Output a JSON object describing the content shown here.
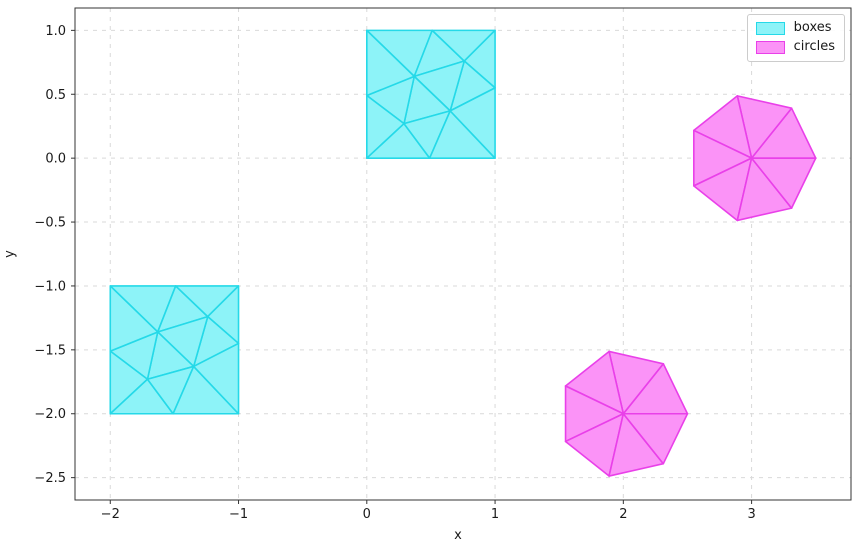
{
  "chart_data": {
    "type": "polygon-mesh",
    "title": "",
    "xlabel": "x",
    "ylabel": "y",
    "xlim": [
      -2.275,
      3.775
    ],
    "ylim": [
      -2.675,
      1.175
    ],
    "x_ticks": [
      -2,
      -1,
      0,
      1,
      2,
      3
    ],
    "x_tick_labels": [
      "−2",
      "−1",
      "0",
      "1",
      "2",
      "3"
    ],
    "y_ticks": [
      1.0,
      0.5,
      0.0,
      -0.5,
      -1.0,
      -1.5,
      -2.0,
      -2.5
    ],
    "y_tick_labels": [
      "1.0",
      "0.5",
      "0.0",
      "−0.5",
      "−1.0",
      "−1.5",
      "−2.0",
      "−2.5"
    ],
    "grid": {
      "visible": true,
      "style": "dashed",
      "color": "#d9d9d9"
    },
    "axes": {
      "spine_color": "#333333",
      "tick_color": "#333333",
      "background": "#ffffff"
    },
    "legend": {
      "position": "upper right",
      "items": [
        {
          "label": "boxes",
          "fill": "#8df3f8",
          "edge": "#25d9e8"
        },
        {
          "label": "circles",
          "fill": "#fb93f7",
          "edge": "#e940e9"
        }
      ]
    },
    "series": [
      {
        "name": "boxes",
        "shape": "triangulated-square",
        "fill": "#8df3f8",
        "edge": "#25d9e8",
        "offsets": [
          [
            0,
            0
          ],
          [
            -2,
            -2
          ]
        ],
        "unit_vertices": {
          "c00": [
            0,
            0
          ],
          "c10": [
            1,
            0
          ],
          "c11": [
            1,
            1
          ],
          "c01": [
            0,
            1
          ],
          "eT": [
            0.51,
            1
          ],
          "eL": [
            0,
            0.49
          ],
          "eR": [
            1,
            0.55
          ],
          "eB": [
            0.49,
            0
          ],
          "iA": [
            0.37,
            0.64
          ],
          "iB": [
            0.76,
            0.76
          ],
          "iC": [
            0.29,
            0.27
          ],
          "iD": [
            0.65,
            0.37
          ]
        },
        "triangles": [
          [
            "c01",
            "eT",
            "iA"
          ],
          [
            "eT",
            "iB",
            "iA"
          ],
          [
            "eT",
            "c11",
            "iB"
          ],
          [
            "c11",
            "eR",
            "iB"
          ],
          [
            "iB",
            "eR",
            "iD"
          ],
          [
            "iB",
            "iD",
            "iA"
          ],
          [
            "iA",
            "iD",
            "iC"
          ],
          [
            "iA",
            "iC",
            "eL"
          ],
          [
            "c01",
            "iA",
            "eL"
          ],
          [
            "eL",
            "iC",
            "c00"
          ],
          [
            "iC",
            "eB",
            "c00"
          ],
          [
            "iC",
            "iD",
            "eB"
          ],
          [
            "iD",
            "c10",
            "eB"
          ],
          [
            "iD",
            "eR",
            "c10"
          ]
        ]
      },
      {
        "name": "circles",
        "shape": "polygon-fan",
        "fill": "#fb93f7",
        "edge": "#e940e9",
        "centers": [
          [
            3,
            0
          ],
          [
            2,
            -2
          ]
        ],
        "radius": 0.5,
        "n_sides": 7,
        "rotation_deg": 0
      }
    ]
  }
}
